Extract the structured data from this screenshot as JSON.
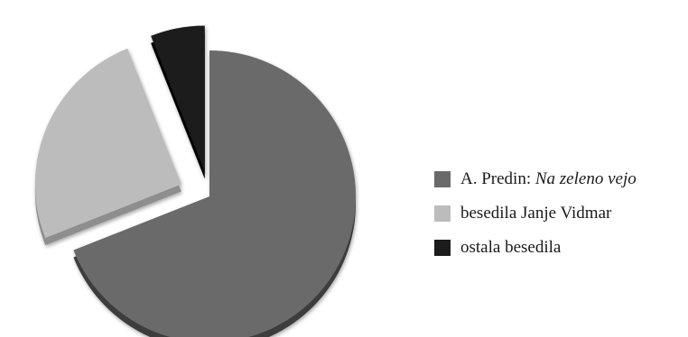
{
  "chart_data": {
    "type": "pie",
    "style": "3d-exploded",
    "title": "",
    "legend_position": "right",
    "slices": [
      {
        "label": "A. Predin:",
        "label_italic": "Na zeleno vejo",
        "value": 0.69,
        "color": "#6a6a6a",
        "side_color": "#3e3e3e"
      },
      {
        "label": "besedila Janje Vidmar",
        "label_italic": "",
        "value": 0.25,
        "color": "#bcbcbc",
        "side_color": "#8e8e8e"
      },
      {
        "label": "ostala besedila",
        "label_italic": "",
        "value": 0.06,
        "color": "#1c1c1c",
        "side_color": "#050505"
      }
    ]
  }
}
